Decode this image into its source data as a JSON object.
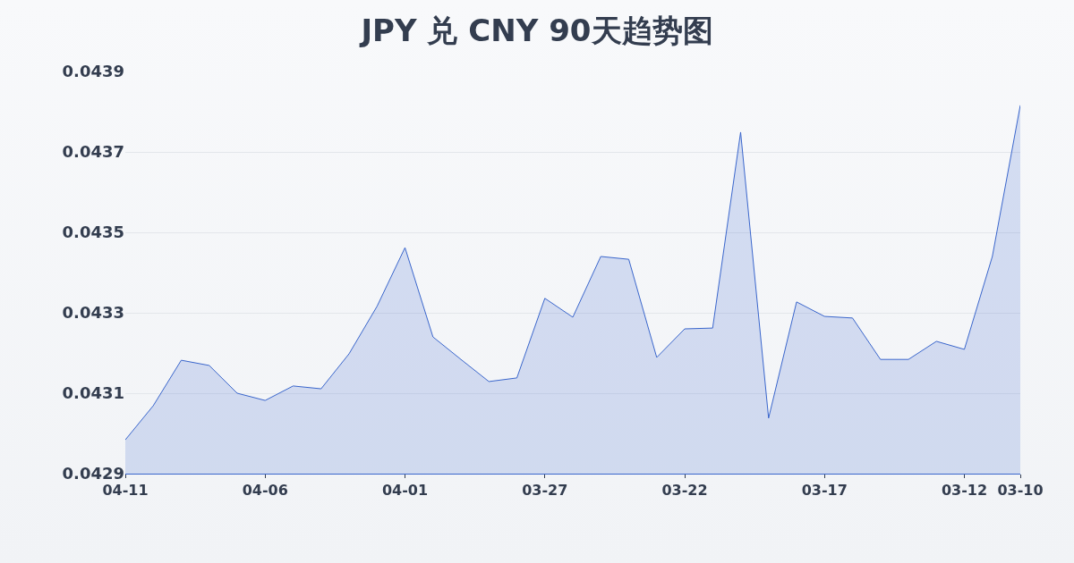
{
  "chart_data": {
    "type": "area",
    "title": "JPY 兑 CNY 90天趋势图",
    "categories": [
      "04-11",
      null,
      null,
      null,
      null,
      "04-06",
      null,
      null,
      null,
      null,
      "04-01",
      null,
      null,
      null,
      null,
      "03-27",
      null,
      null,
      null,
      null,
      "03-22",
      null,
      null,
      null,
      null,
      "03-17",
      null,
      null,
      null,
      null,
      "03-12",
      null,
      "03-10"
    ],
    "series": [
      {
        "color": "#3a66cc",
        "values": [
          0.042984,
          0.043069,
          0.043182,
          0.043169,
          0.0431,
          0.043082,
          0.043118,
          0.043111,
          0.043198,
          0.043316,
          0.043462,
          0.04324,
          0.043184,
          0.043129,
          0.043138,
          0.043336,
          0.043289,
          0.04344,
          0.043433,
          0.043189,
          0.04326,
          0.043262,
          0.043749,
          0.043038,
          0.043327,
          0.043291,
          0.043287,
          0.043184,
          0.043184,
          0.043229,
          0.043209,
          0.04344,
          0.043816
        ]
      }
    ],
    "ylim": [
      0.0429,
      0.0439
    ],
    "yticks": [
      0.0429,
      0.0431,
      0.0433,
      0.0435,
      0.0437,
      0.0439
    ],
    "grid": "y",
    "marker": "none",
    "line_style": "solid"
  }
}
